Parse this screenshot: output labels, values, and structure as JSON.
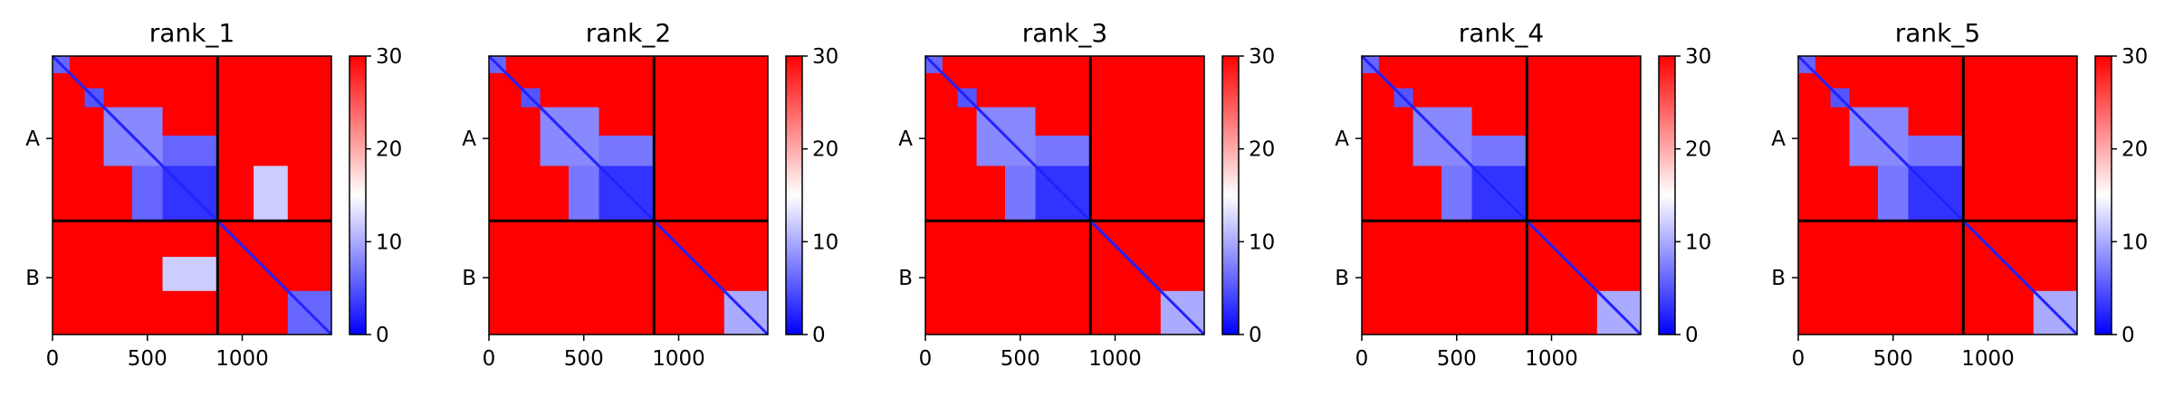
{
  "figure": {
    "panels": [
      "rank_1",
      "rank_2",
      "rank_3",
      "rank_4",
      "rank_5"
    ],
    "row_labels": [
      "A",
      "B"
    ],
    "colorbar": {
      "ticks": [
        "0",
        "10",
        "20",
        "30"
      ],
      "range": [
        0,
        30
      ],
      "colors": [
        "#0000ff",
        "#ffffff",
        "#ff0000"
      ]
    }
  },
  "chart_data": [
    {
      "type": "heatmap",
      "title": "rank_1",
      "xlabel": "",
      "ylabel": "",
      "x_ticks": [
        "0",
        "500",
        "1000"
      ],
      "x_tick_values": [
        0,
        500,
        1000
      ],
      "xlim": [
        0,
        1470
      ],
      "y_tick_labels": [
        "A",
        "B"
      ],
      "chain_boundary": 870,
      "chain_A_range": [
        0,
        870
      ],
      "chain_B_range": [
        870,
        1470
      ],
      "color_range": [
        0,
        30
      ],
      "low_value_blocks": [
        {
          "x": [
            0,
            90
          ],
          "y": [
            0,
            90
          ],
          "value": 6
        },
        {
          "x": [
            170,
            270
          ],
          "y": [
            170,
            270
          ],
          "value": 5
        },
        {
          "x": [
            270,
            580
          ],
          "y": [
            270,
            580
          ],
          "value": 8
        },
        {
          "x": [
            580,
            870
          ],
          "y": [
            580,
            870
          ],
          "value": 3
        },
        {
          "x": [
            580,
            870
          ],
          "y": [
            420,
            580
          ],
          "value": 6
        },
        {
          "x": [
            420,
            580
          ],
          "y": [
            580,
            870
          ],
          "value": 6
        },
        {
          "x": [
            1060,
            1240
          ],
          "y": [
            580,
            870
          ],
          "value": 12
        },
        {
          "x": [
            580,
            870
          ],
          "y": [
            1060,
            1240
          ],
          "value": 12
        },
        {
          "x": [
            1240,
            1470
          ],
          "y": [
            1240,
            1470
          ],
          "value": 6
        }
      ]
    },
    {
      "type": "heatmap",
      "title": "rank_2",
      "xlabel": "",
      "ylabel": "",
      "x_ticks": [
        "0",
        "500",
        "1000"
      ],
      "x_tick_values": [
        0,
        500,
        1000
      ],
      "xlim": [
        0,
        1470
      ],
      "y_tick_labels": [
        "A",
        "B"
      ],
      "chain_boundary": 870,
      "chain_A_range": [
        0,
        870
      ],
      "chain_B_range": [
        870,
        1470
      ],
      "color_range": [
        0,
        30
      ],
      "low_value_blocks": [
        {
          "x": [
            0,
            90
          ],
          "y": [
            0,
            90
          ],
          "value": 6
        },
        {
          "x": [
            170,
            270
          ],
          "y": [
            170,
            270
          ],
          "value": 5
        },
        {
          "x": [
            270,
            580
          ],
          "y": [
            270,
            580
          ],
          "value": 8
        },
        {
          "x": [
            580,
            870
          ],
          "y": [
            580,
            870
          ],
          "value": 3
        },
        {
          "x": [
            580,
            870
          ],
          "y": [
            420,
            580
          ],
          "value": 7
        },
        {
          "x": [
            420,
            580
          ],
          "y": [
            580,
            870
          ],
          "value": 7
        },
        {
          "x": [
            1240,
            1470
          ],
          "y": [
            1240,
            1470
          ],
          "value": 10
        }
      ]
    },
    {
      "type": "heatmap",
      "title": "rank_3",
      "xlabel": "",
      "ylabel": "",
      "x_ticks": [
        "0",
        "500",
        "1000"
      ],
      "x_tick_values": [
        0,
        500,
        1000
      ],
      "xlim": [
        0,
        1470
      ],
      "y_tick_labels": [
        "A",
        "B"
      ],
      "chain_boundary": 870,
      "chain_A_range": [
        0,
        870
      ],
      "chain_B_range": [
        870,
        1470
      ],
      "color_range": [
        0,
        30
      ],
      "low_value_blocks": [
        {
          "x": [
            0,
            90
          ],
          "y": [
            0,
            90
          ],
          "value": 6
        },
        {
          "x": [
            170,
            270
          ],
          "y": [
            170,
            270
          ],
          "value": 5
        },
        {
          "x": [
            270,
            580
          ],
          "y": [
            270,
            580
          ],
          "value": 8
        },
        {
          "x": [
            580,
            870
          ],
          "y": [
            580,
            870
          ],
          "value": 3
        },
        {
          "x": [
            580,
            870
          ],
          "y": [
            420,
            580
          ],
          "value": 7
        },
        {
          "x": [
            420,
            580
          ],
          "y": [
            580,
            870
          ],
          "value": 7
        },
        {
          "x": [
            1240,
            1470
          ],
          "y": [
            1240,
            1470
          ],
          "value": 10
        }
      ]
    },
    {
      "type": "heatmap",
      "title": "rank_4",
      "xlabel": "",
      "ylabel": "",
      "x_ticks": [
        "0",
        "500",
        "1000"
      ],
      "x_tick_values": [
        0,
        500,
        1000
      ],
      "xlim": [
        0,
        1470
      ],
      "y_tick_labels": [
        "A",
        "B"
      ],
      "chain_boundary": 870,
      "chain_A_range": [
        0,
        870
      ],
      "chain_B_range": [
        870,
        1470
      ],
      "color_range": [
        0,
        30
      ],
      "low_value_blocks": [
        {
          "x": [
            0,
            90
          ],
          "y": [
            0,
            90
          ],
          "value": 6
        },
        {
          "x": [
            170,
            270
          ],
          "y": [
            170,
            270
          ],
          "value": 5
        },
        {
          "x": [
            270,
            580
          ],
          "y": [
            270,
            580
          ],
          "value": 8
        },
        {
          "x": [
            580,
            870
          ],
          "y": [
            580,
            870
          ],
          "value": 3
        },
        {
          "x": [
            580,
            870
          ],
          "y": [
            420,
            580
          ],
          "value": 7
        },
        {
          "x": [
            420,
            580
          ],
          "y": [
            580,
            870
          ],
          "value": 7
        },
        {
          "x": [
            1240,
            1470
          ],
          "y": [
            1240,
            1470
          ],
          "value": 10
        }
      ]
    },
    {
      "type": "heatmap",
      "title": "rank_5",
      "xlabel": "",
      "ylabel": "",
      "x_ticks": [
        "0",
        "500",
        "1000"
      ],
      "x_tick_values": [
        0,
        500,
        1000
      ],
      "xlim": [
        0,
        1470
      ],
      "y_tick_labels": [
        "A",
        "B"
      ],
      "chain_boundary": 870,
      "chain_A_range": [
        0,
        870
      ],
      "chain_B_range": [
        870,
        1470
      ],
      "color_range": [
        0,
        30
      ],
      "low_value_blocks": [
        {
          "x": [
            0,
            90
          ],
          "y": [
            0,
            90
          ],
          "value": 6
        },
        {
          "x": [
            170,
            270
          ],
          "y": [
            170,
            270
          ],
          "value": 5
        },
        {
          "x": [
            270,
            580
          ],
          "y": [
            270,
            580
          ],
          "value": 8
        },
        {
          "x": [
            580,
            870
          ],
          "y": [
            580,
            870
          ],
          "value": 3
        },
        {
          "x": [
            580,
            870
          ],
          "y": [
            420,
            580
          ],
          "value": 7
        },
        {
          "x": [
            420,
            580
          ],
          "y": [
            580,
            870
          ],
          "value": 7
        },
        {
          "x": [
            1240,
            1470
          ],
          "y": [
            1240,
            1470
          ],
          "value": 10
        }
      ]
    }
  ]
}
